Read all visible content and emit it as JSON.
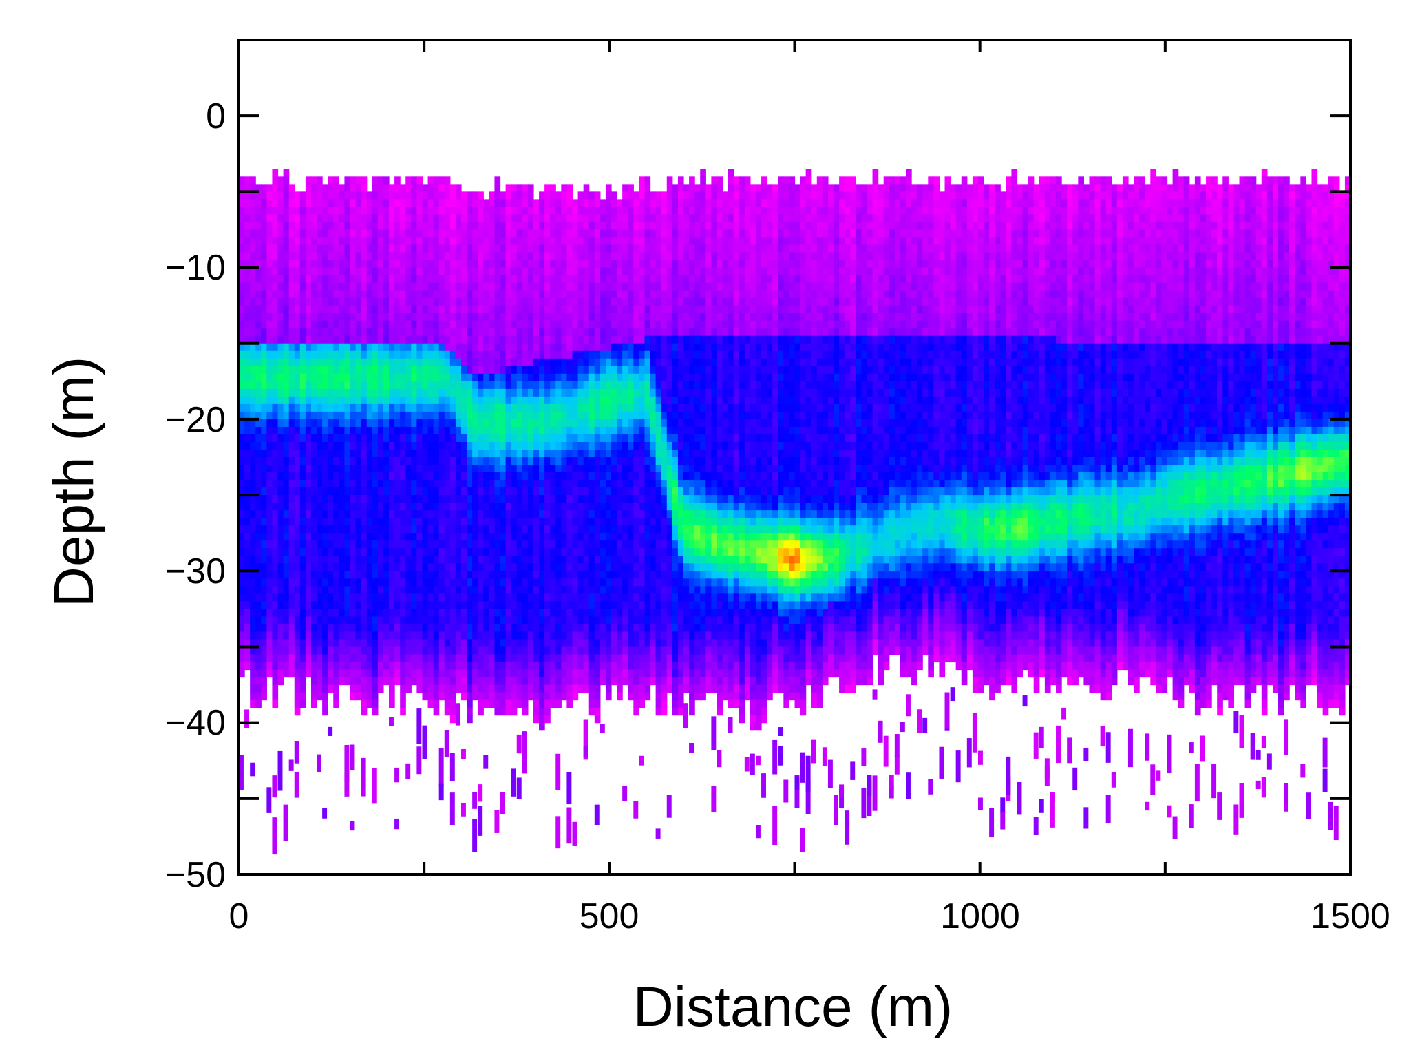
{
  "chart_data": {
    "type": "heatmap",
    "title": "",
    "xlabel": "Distance (m)",
    "ylabel": "Depth (m)",
    "xlim": [
      0,
      1500
    ],
    "ylim": [
      -50,
      5
    ],
    "x_ticks": [
      0,
      500,
      1000,
      1500
    ],
    "y_ticks": [
      0,
      -10,
      -20,
      -30,
      -40,
      -50
    ],
    "x_tick_labels": [
      "0",
      "500",
      "1000",
      "1500"
    ],
    "y_tick_labels": [
      "0",
      "−10",
      "−20",
      "−30",
      "−40",
      "−50"
    ],
    "grid": false,
    "legend": "none",
    "colormap": [
      "#ff00ff",
      "#8a00ff",
      "#0000ff",
      "#00c8ff",
      "#00ff66",
      "#ffff00",
      "#ff0000"
    ],
    "series": [
      {
        "distance": [
          0,
          100,
          200,
          280,
          320,
          400,
          450,
          500,
          550,
          600,
          650,
          700,
          750,
          800,
          850,
          900,
          950,
          1000,
          1050,
          1100,
          1150,
          1200,
          1250,
          1300,
          1350,
          1400,
          1450,
          1500
        ],
        "layer_top_depth": [
          -4.5,
          -4.5,
          -4.5,
          -4.5,
          -5,
          -5,
          -5,
          -5,
          -5,
          -4.5,
          -4.5,
          -4.5,
          -4.5,
          -4.5,
          -4.5,
          -4.5,
          -4.5,
          -4.5,
          -4.5,
          -4.5,
          -4.5,
          -4.5,
          -4.5,
          -4.5,
          -4.5,
          -4.5,
          -4.5,
          -4.5
        ],
        "scatter_layer_top_depth": [
          -15,
          -15,
          -15,
          -15,
          -17,
          -16,
          -15.5,
          -15,
          -14.5,
          -14.5,
          -14.5,
          -14.5,
          -14.5,
          -14.5,
          -14.5,
          -14.5,
          -14.5,
          -14.5,
          -14.5,
          -14.5,
          -15,
          -15,
          -15,
          -15,
          -15,
          -15,
          -15,
          -15
        ],
        "peak_depth": [
          -17,
          -17,
          -17,
          -17,
          -20,
          -20,
          -19.5,
          -18.5,
          -18,
          -27,
          -28,
          -28.5,
          -29,
          -29,
          -28,
          -27,
          -26.5,
          -27,
          -27,
          -26.5,
          -26,
          -26,
          -25,
          -24.5,
          -24,
          -23.5,
          -23,
          -22.5
        ],
        "peak_intensity": [
          0.62,
          0.64,
          0.62,
          0.6,
          0.62,
          0.6,
          0.58,
          0.62,
          0.58,
          0.68,
          0.72,
          0.74,
          0.9,
          0.68,
          0.55,
          0.5,
          0.58,
          0.66,
          0.72,
          0.64,
          0.62,
          0.58,
          0.6,
          0.64,
          0.66,
          0.68,
          0.75,
          0.72
        ],
        "scatter_layer_bottom_depth": [
          -36,
          -37,
          -37,
          -37,
          -38,
          -38,
          -38,
          -37,
          -37,
          -37,
          -38,
          -38,
          -37,
          -36,
          -35,
          -35,
          -35,
          -36,
          -36,
          -36,
          -36,
          -36,
          -36,
          -37,
          -37,
          -37,
          -37,
          -37
        ]
      }
    ]
  }
}
